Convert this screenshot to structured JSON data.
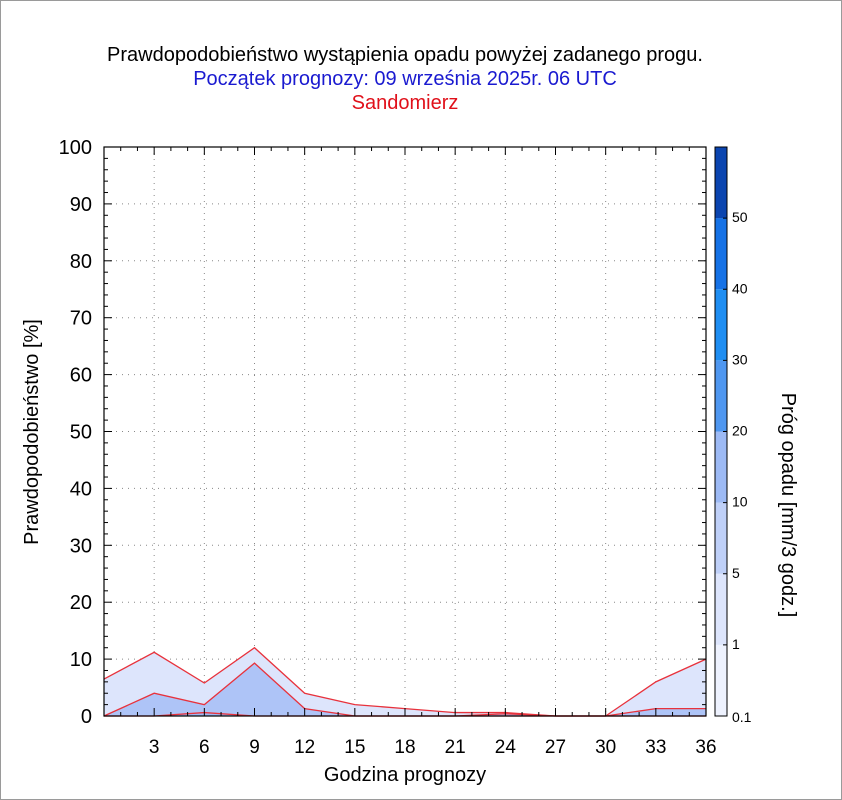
{
  "chart_data": {
    "type": "area",
    "title": "Prawdopodobieństwo wystąpienia opadu powyżej zadanego progu.",
    "subtitle": "Początek prognozy: 09 września 2025r. 06 UTC",
    "location": "Sandomierz",
    "xlabel": "Godzina prognozy",
    "ylabel": "Prawdopodobieństwo [%]",
    "colorbar_label": "Próg opadu [mm/3 godz.]",
    "xlim": [
      0,
      36
    ],
    "ylim": [
      0,
      100
    ],
    "x_ticks": [
      3,
      6,
      9,
      12,
      15,
      18,
      21,
      24,
      27,
      30,
      33,
      36
    ],
    "y_ticks": [
      0,
      10,
      20,
      30,
      40,
      50,
      60,
      70,
      80,
      90,
      100
    ],
    "grid": true,
    "x": [
      0,
      3,
      6,
      9,
      12,
      15,
      18,
      21,
      24,
      27,
      30,
      33,
      36
    ],
    "series": [
      {
        "name": "0.1",
        "color": "#dde5fc",
        "values": [
          6.5,
          11.2,
          5.8,
          12.0,
          4.0,
          2.0,
          1.3,
          0.6,
          0.6,
          0,
          0,
          6.0,
          10.0
        ]
      },
      {
        "name": "1",
        "color": "#aec4f7",
        "values": [
          0,
          4.0,
          2.0,
          9.3,
          1.3,
          0,
          0,
          0,
          0.4,
          0,
          0,
          1.3,
          1.3
        ]
      },
      {
        "name": "5",
        "color": "#9db8f3",
        "values": [
          0,
          0,
          0.6,
          0,
          0,
          0,
          0,
          0,
          0,
          0,
          0,
          0,
          0
        ]
      }
    ],
    "colorbar": {
      "labels": [
        "0.1",
        "1",
        "5",
        "10",
        "20",
        "30",
        "40",
        "50"
      ],
      "bands": [
        {
          "from": 0,
          "to": 1,
          "color": "#eef2fe"
        },
        {
          "from": 1,
          "to": 5,
          "color": "#dde5fc"
        },
        {
          "from": 5,
          "to": 10,
          "color": "#bfd0f8"
        },
        {
          "from": 10,
          "to": 20,
          "color": "#9dbaf5"
        },
        {
          "from": 20,
          "to": 30,
          "color": "#4f97f0"
        },
        {
          "from": 30,
          "to": 40,
          "color": "#1f8ef2"
        },
        {
          "from": 40,
          "to": 50,
          "color": "#1672e6"
        },
        {
          "from": 50,
          "to": 60,
          "color": "#0f5ed7"
        },
        {
          "from": 60,
          "to": 70,
          "color": "#0b45b0"
        }
      ]
    },
    "line_color": "#e8323c"
  }
}
